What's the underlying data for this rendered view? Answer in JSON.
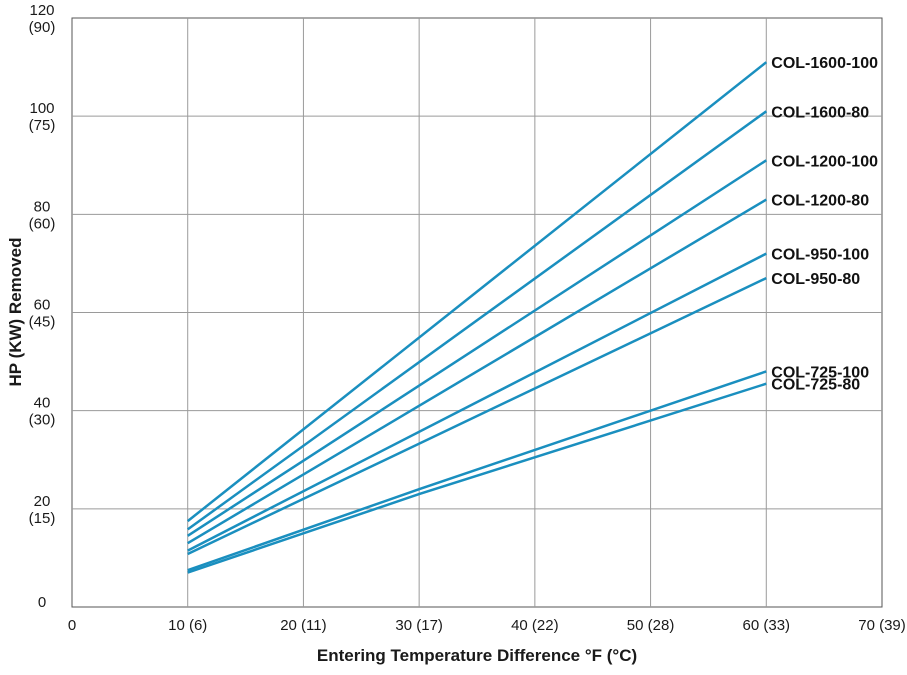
{
  "chart_data": {
    "type": "line",
    "title": "",
    "xlabel": "Entering Temperature Difference °F (°C)",
    "ylabel": "HP (KW) Removed",
    "xlim": [
      0,
      70
    ],
    "ylim": [
      0,
      120
    ],
    "grid": true,
    "line_color": "#1a8fbf",
    "x_ticks": [
      {
        "value": 0,
        "label": "0"
      },
      {
        "value": 10,
        "label": "10 (6)"
      },
      {
        "value": 20,
        "label": "20 (11)"
      },
      {
        "value": 30,
        "label": "30 (17)"
      },
      {
        "value": 40,
        "label": "40 (22)"
      },
      {
        "value": 50,
        "label": "50 (28)"
      },
      {
        "value": 60,
        "label": "60 (33)"
      },
      {
        "value": 70,
        "label": "70 (39)"
      }
    ],
    "y_ticks": [
      {
        "value": 0,
        "label": "0",
        "sub": ""
      },
      {
        "value": 20,
        "label": "20",
        "sub": "(15)"
      },
      {
        "value": 40,
        "label": "40",
        "sub": "(30)"
      },
      {
        "value": 60,
        "label": "60",
        "sub": "(45)"
      },
      {
        "value": 80,
        "label": "80",
        "sub": "(60)"
      },
      {
        "value": 100,
        "label": "100",
        "sub": "(75)"
      },
      {
        "value": 120,
        "label": "120",
        "sub": "(90)"
      }
    ],
    "series": [
      {
        "name": "COL-1600-100",
        "x": [
          10,
          60
        ],
        "y": [
          17.5,
          111
        ]
      },
      {
        "name": "COL-1600-80",
        "x": [
          10,
          60
        ],
        "y": [
          15.8,
          101
        ]
      },
      {
        "name": "COL-1200-100",
        "x": [
          10,
          60
        ],
        "y": [
          14.5,
          91
        ]
      },
      {
        "name": "COL-1200-80",
        "x": [
          10,
          60
        ],
        "y": [
          13,
          83
        ]
      },
      {
        "name": "COL-950-100",
        "x": [
          10,
          60
        ],
        "y": [
          11.5,
          72
        ]
      },
      {
        "name": "COL-950-80",
        "x": [
          10,
          60
        ],
        "y": [
          10.8,
          67
        ]
      },
      {
        "name": "COL-725-100",
        "x": [
          10,
          30,
          60
        ],
        "y": [
          7.5,
          24,
          48
        ]
      },
      {
        "name": "COL-725-80",
        "x": [
          10,
          30,
          60
        ],
        "y": [
          7,
          23,
          45.5
        ]
      }
    ]
  }
}
